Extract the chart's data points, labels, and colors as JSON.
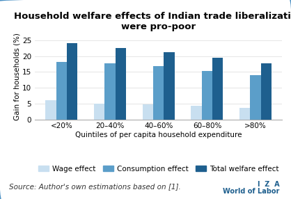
{
  "title": "Household welfare effects of Indian trade liberalization\nwere pro-poor",
  "xlabel": "Quintiles of per capita household expenditure",
  "ylabel": "Gain for households (%)",
  "categories": [
    "<20%",
    "20–40%",
    "40–60%",
    "60–80%",
    ">80%"
  ],
  "series": {
    "Wage effect": [
      6.0,
      5.0,
      4.8,
      4.3,
      3.7
    ],
    "Consumption effect": [
      18.2,
      17.6,
      16.8,
      15.3,
      13.9
    ],
    "Total welfare effect": [
      24.0,
      22.5,
      21.3,
      19.5,
      17.7
    ]
  },
  "colors": {
    "Wage effect": "#c8dff0",
    "Consumption effect": "#5b9ec9",
    "Total welfare effect": "#1e5f8e"
  },
  "ylim": [
    0,
    27
  ],
  "yticks": [
    0,
    5,
    10,
    15,
    20,
    25
  ],
  "legend_labels": [
    "Wage effect",
    "Consumption effect",
    "Total welfare effect"
  ],
  "source_text": "Source: Author's own estimations based on [1].",
  "iza_line1": "I  Z  A",
  "iza_line2": "World of Labor",
  "background_color": "#ffffff",
  "border_color": "#4a90c4",
  "bar_width": 0.22,
  "title_fontsize": 9.5,
  "axis_fontsize": 7.5,
  "tick_fontsize": 7.5,
  "legend_fontsize": 7.5,
  "source_fontsize": 7.5
}
